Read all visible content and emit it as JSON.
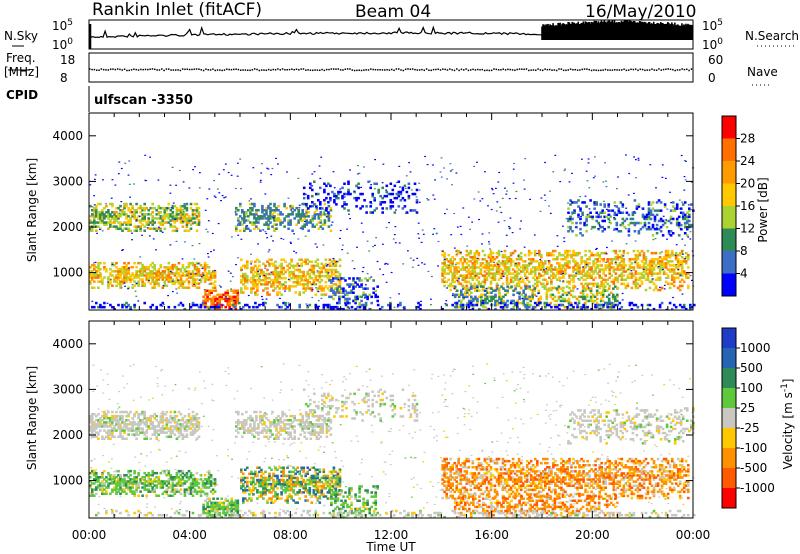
{
  "header": {
    "title": "Rankin Inlet (fitACF)",
    "beam": "Beam 04",
    "date": "16/May/2010"
  },
  "strip_labels": {
    "nsky": "N.Sky",
    "nsearch": "N.Search",
    "freq_top": "Freq.",
    "freq_unit": "[MHz]",
    "nave": "Nave",
    "cpid": "CPID",
    "cpid_value": "ulfscan -3350"
  },
  "strip_ticks": {
    "noise_top": "10^5",
    "noise_bottom": "10^0",
    "freq_top": "18",
    "freq_bottom": "8",
    "nave_top": "60",
    "nave_bottom": "0"
  },
  "axes": {
    "ylabel": "Slant Range [km]",
    "xlabel": "Time UT",
    "yticks": [
      "4000",
      "3000",
      "2000",
      "1000"
    ],
    "xticks": [
      "00:00",
      "04:00",
      "08:00",
      "12:00",
      "16:00",
      "20:00",
      "00:00"
    ]
  },
  "power_bar": {
    "label": "Power [dB]",
    "ticks": [
      "28",
      "24",
      "20",
      "16",
      "12",
      "8",
      "4"
    ],
    "colors": [
      "#ff0000",
      "#ff7000",
      "#ff9a00",
      "#ffc800",
      "#aad232",
      "#2e8b57",
      "#3c6ec8",
      "#0000ff"
    ]
  },
  "velocity_bar": {
    "label": "Velocity [m s^-1]",
    "ticks": [
      "1000",
      "500",
      "100",
      "25",
      "-25",
      "-100",
      "-500",
      "-1000"
    ],
    "colors": [
      "#1e3cc8",
      "#2864b4",
      "#2e8b57",
      "#5fc83c",
      "#c8c8c0",
      "#ffc800",
      "#ff9000",
      "#ff5a00",
      "#ff0000"
    ]
  },
  "chart_data": {
    "type": "heatmap",
    "title": "Rankin Inlet (fitACF)",
    "xlabel": "Time UT",
    "ylabel": "Slant Range [km]",
    "xlim": [
      0,
      24
    ],
    "ylim": [
      180,
      4500
    ],
    "x_ticks": [
      "00:00",
      "04:00",
      "08:00",
      "12:00",
      "16:00",
      "20:00",
      "00:00"
    ],
    "y_ticks": [
      1000,
      2000,
      3000,
      4000
    ],
    "panels": [
      "Power [dB]",
      "Velocity [m s^-1]"
    ]
  }
}
